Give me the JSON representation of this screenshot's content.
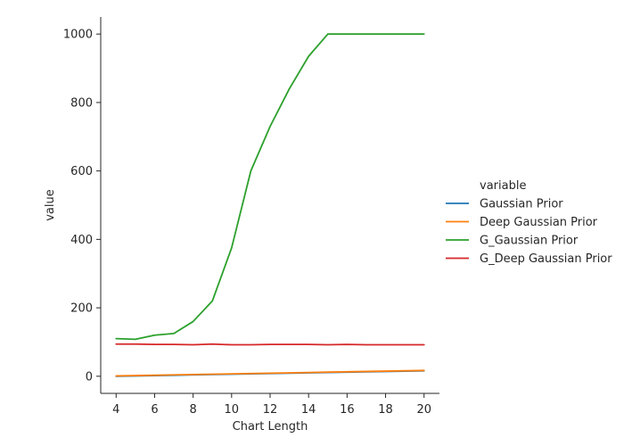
{
  "chart_data": {
    "type": "line",
    "xlabel": "Chart Length",
    "ylabel": "value",
    "legend_title": "variable",
    "legend_position": "right",
    "xlim": [
      3.2,
      20.8
    ],
    "ylim": [
      -50,
      1050
    ],
    "xticks": [
      4,
      6,
      8,
      10,
      12,
      14,
      16,
      18,
      20
    ],
    "yticks": [
      0,
      200,
      400,
      600,
      800,
      1000
    ],
    "grid": false,
    "x": [
      4,
      5,
      6,
      7,
      8,
      9,
      10,
      11,
      12,
      13,
      14,
      15,
      16,
      17,
      18,
      19,
      20
    ],
    "series": [
      {
        "name": "Gaussian Prior",
        "color": "#1f77b4",
        "values": [
          0,
          1,
          2,
          3,
          4,
          5,
          6,
          7,
          8,
          9,
          10,
          11,
          12,
          13,
          14,
          15,
          16
        ]
      },
      {
        "name": "Deep Gaussian Prior",
        "color": "#ff7f0e",
        "values": [
          1,
          2,
          3,
          4,
          5,
          6,
          7,
          8,
          9,
          10,
          11,
          12,
          13,
          14,
          15,
          16,
          17
        ]
      },
      {
        "name": "G_Gaussian Prior",
        "color": "#2ca02c",
        "values": [
          110,
          108,
          120,
          125,
          160,
          220,
          375,
          600,
          730,
          840,
          935,
          1000,
          1000,
          1000,
          1000,
          1000,
          1000
        ]
      },
      {
        "name": "G_Deep Gaussian Prior",
        "color": "#d62728",
        "values": [
          94,
          94,
          93,
          93,
          92,
          94,
          92,
          92,
          93,
          93,
          93,
          92,
          93,
          92,
          92,
          92,
          92
        ]
      }
    ]
  }
}
